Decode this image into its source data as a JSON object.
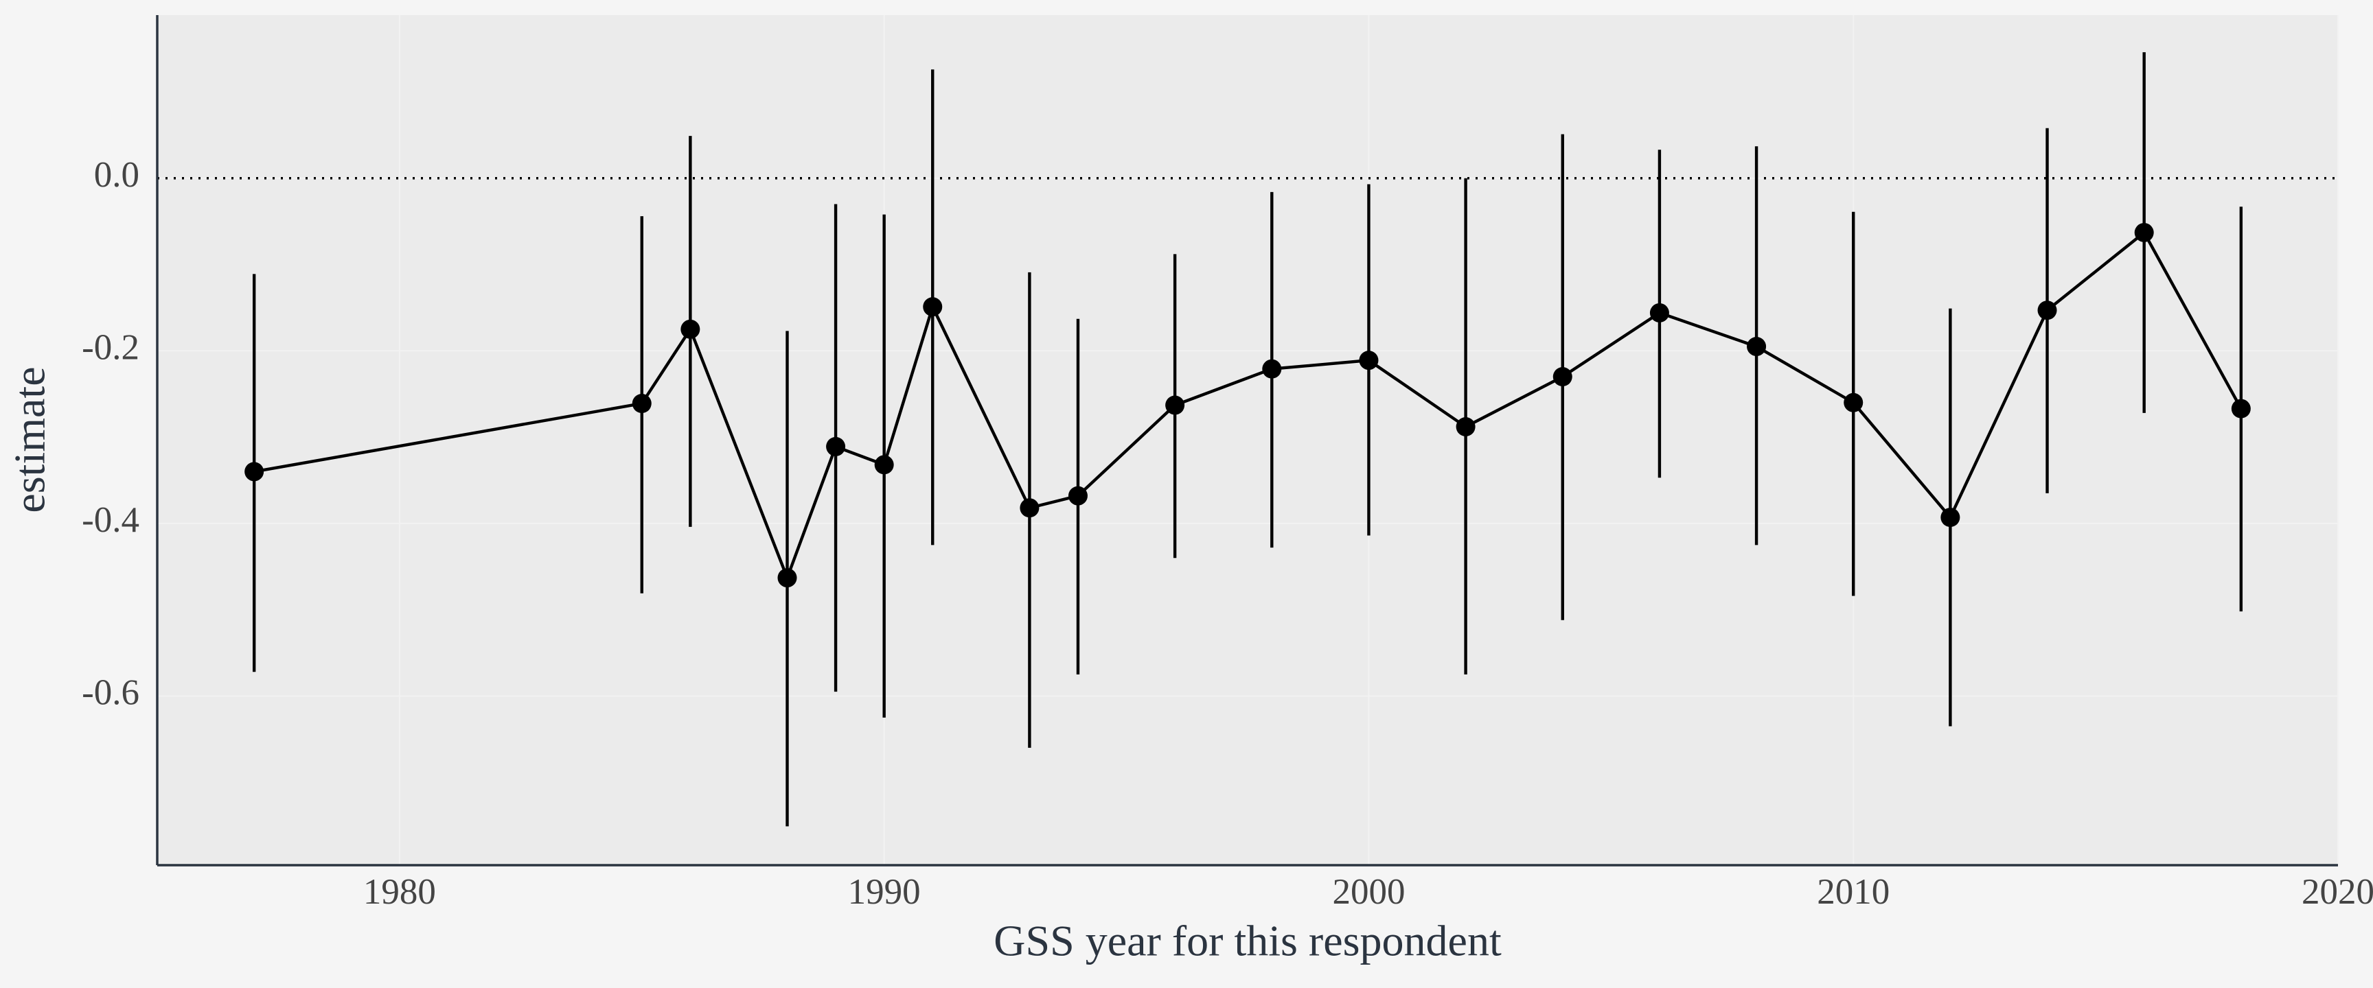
{
  "chart_data": {
    "type": "line",
    "x_label": "GSS year for this respondent",
    "y_label": "estimate",
    "x": [
      1977,
      1985,
      1986,
      1988,
      1989,
      1990,
      1991,
      1993,
      1994,
      1996,
      1998,
      2000,
      2002,
      2004,
      2006,
      2008,
      2010,
      2012,
      2014,
      2016,
      2018
    ],
    "series": [
      {
        "color": "#000000",
        "values": [
          -0.34,
          -0.261,
          -0.175,
          -0.463,
          -0.311,
          -0.332,
          -0.149,
          -0.382,
          -0.368,
          -0.263,
          -0.221,
          -0.211,
          -0.288,
          -0.23,
          -0.156,
          -0.195,
          -0.26,
          -0.393,
          -0.153,
          -0.063,
          -0.267
        ],
        "lower": [
          -0.572,
          -0.481,
          -0.404,
          -0.751,
          -0.595,
          -0.625,
          -0.425,
          -0.66,
          -0.575,
          -0.44,
          -0.428,
          -0.414,
          -0.575,
          -0.512,
          -0.347,
          -0.425,
          -0.484,
          -0.635,
          -0.365,
          -0.272,
          -0.502
        ],
        "upper": [
          -0.111,
          -0.044,
          0.049,
          -0.177,
          -0.03,
          -0.042,
          0.126,
          -0.109,
          -0.163,
          -0.088,
          -0.016,
          -0.007,
          0.0,
          0.051,
          0.033,
          0.037,
          -0.039,
          -0.151,
          0.058,
          0.146,
          -0.033
        ]
      }
    ],
    "hline": 0,
    "xlim": [
      1975,
      2020
    ],
    "xticks": [
      1980,
      1990,
      2000,
      2010,
      2020
    ],
    "ylim": [
      -0.796,
      0.189
    ],
    "yticks": [
      -0.6,
      -0.4,
      -0.2,
      {
        "value": 0,
        "label": "0.0"
      }
    ],
    "grid": true
  }
}
